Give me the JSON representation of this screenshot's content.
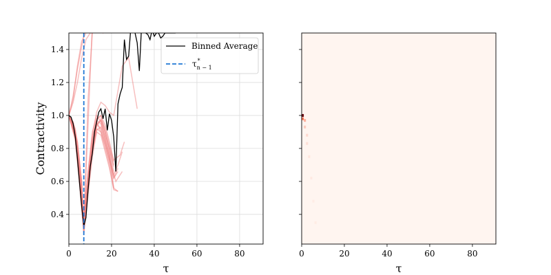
{
  "chart_data": [
    {
      "type": "line",
      "xlabel": "τ",
      "ylabel": "Contractivity",
      "xlim": [
        0,
        91
      ],
      "ylim": [
        0.22,
        1.5
      ],
      "xticks": [
        0,
        20,
        40,
        60,
        80
      ],
      "yticks": [
        0.4,
        0.6,
        0.8,
        1.0,
        1.2,
        1.4
      ],
      "grid": true,
      "legend_placement": "upper right",
      "legend": [
        {
          "label": "Binned Average",
          "style": "solid",
          "color": "#000000"
        },
        {
          "label": "τ",
          "sup": "*",
          "sub": "n − 1",
          "style": "dashed",
          "color": "#1f77d4"
        }
      ],
      "colors": {
        "individual_series": "#f08080",
        "average": "#000000",
        "threshold": "#1f77d4"
      },
      "threshold_x": 7,
      "series": [
        {
          "name": "Binned Average",
          "x": [
            0,
            1,
            2,
            3,
            4,
            5,
            6,
            7,
            8,
            9,
            10,
            11,
            12,
            13,
            14,
            15,
            16,
            17,
            18,
            19,
            20,
            21,
            22,
            23,
            24,
            25,
            26,
            27,
            28,
            29,
            30,
            31,
            32,
            33,
            34,
            35,
            36,
            37,
            38,
            39,
            40,
            41,
            42,
            43,
            44,
            45,
            46,
            47,
            48,
            49,
            50
          ],
          "values": [
            1.0,
            0.99,
            0.95,
            0.87,
            0.74,
            0.59,
            0.45,
            0.33,
            0.38,
            0.55,
            0.69,
            0.77,
            0.9,
            0.96,
            1.02,
            1.04,
            0.98,
            1.04,
            0.91,
            1.01,
            0.97,
            0.87,
            0.66,
            1.07,
            1.13,
            1.17,
            1.46,
            1.34,
            1.36,
            1.53,
            1.53,
            1.5,
            1.44,
            1.27,
            1.53,
            1.53,
            1.5,
            1.49,
            1.46,
            1.52,
            1.48,
            1.5,
            1.5,
            1.47,
            1.48,
            1.5,
            1.5,
            1.5,
            1.5,
            1.5,
            1.5
          ]
        }
      ],
      "individual_series": [
        {
          "x": [
            0,
            3,
            5,
            7,
            9,
            11,
            13,
            15,
            17,
            19,
            21
          ],
          "values": [
            1.0,
            0.86,
            0.6,
            0.3,
            0.55,
            0.78,
            0.92,
            0.9,
            0.8,
            0.7,
            0.56
          ]
        },
        {
          "x": [
            0,
            3,
            5,
            7,
            9,
            11,
            13,
            15,
            17,
            19,
            21,
            23
          ],
          "values": [
            1.0,
            0.88,
            0.62,
            0.32,
            0.6,
            0.82,
            0.97,
            0.95,
            0.86,
            0.76,
            0.62,
            0.68
          ]
        },
        {
          "x": [
            0,
            3,
            5,
            7,
            9,
            11,
            13,
            15,
            17,
            19,
            21,
            24,
            26
          ],
          "values": [
            1.0,
            0.9,
            0.66,
            0.34,
            0.58,
            0.8,
            0.93,
            0.98,
            0.92,
            0.82,
            0.73,
            0.76,
            0.84
          ]
        },
        {
          "x": [
            0,
            3,
            5,
            7,
            9,
            11,
            13,
            15,
            17,
            19,
            21,
            23
          ],
          "values": [
            1.0,
            0.85,
            0.58,
            0.28,
            0.52,
            0.75,
            0.9,
            0.88,
            0.78,
            0.68,
            0.55,
            0.54
          ]
        },
        {
          "x": [
            0,
            3,
            5,
            7,
            9,
            11,
            13,
            15,
            17,
            19,
            21
          ],
          "values": [
            1.0,
            0.87,
            0.64,
            0.36,
            0.62,
            0.84,
            0.97,
            1.0,
            0.94,
            0.84,
            0.72
          ]
        },
        {
          "x": [
            0,
            3,
            5,
            7,
            9,
            11,
            13,
            15,
            17,
            19,
            21,
            23,
            25
          ],
          "values": [
            1.0,
            0.88,
            0.6,
            0.31,
            0.57,
            0.79,
            0.95,
            0.92,
            0.83,
            0.73,
            0.64,
            0.7,
            0.78
          ]
        },
        {
          "x": [
            0,
            3,
            5,
            7,
            9,
            11,
            13,
            15,
            17,
            19,
            21
          ],
          "values": [
            1.0,
            0.89,
            0.63,
            0.33,
            0.6,
            0.81,
            0.94,
            0.97,
            0.88,
            0.8,
            0.69
          ]
        },
        {
          "x": [
            0,
            3,
            5,
            7,
            9,
            11,
            13,
            15,
            17,
            19,
            21,
            23,
            25,
            28,
            32
          ],
          "values": [
            1.0,
            0.92,
            0.7,
            0.4,
            0.66,
            0.88,
            1.02,
            1.08,
            1.06,
            1.02,
            1.0,
            1.15,
            1.3,
            1.35,
            1.04
          ]
        },
        {
          "x": [
            0,
            3,
            5,
            7,
            9,
            11,
            13,
            15,
            17,
            19,
            22,
            25
          ],
          "values": [
            1.0,
            0.86,
            0.61,
            0.3,
            0.56,
            0.78,
            0.91,
            0.93,
            0.84,
            0.74,
            0.6,
            0.66
          ]
        },
        {
          "x": [
            0,
            3,
            5,
            7,
            9,
            11,
            13,
            15,
            17,
            19,
            21,
            23
          ],
          "values": [
            1.0,
            0.88,
            0.62,
            0.33,
            0.59,
            0.8,
            0.96,
            0.9,
            0.82,
            0.72,
            0.62,
            0.66
          ]
        },
        {
          "x": [
            0,
            3,
            5,
            7,
            9,
            11,
            13,
            15,
            17,
            19,
            21
          ],
          "values": [
            1.0,
            0.9,
            0.65,
            0.35,
            0.6,
            0.82,
            0.95,
            0.97,
            0.9,
            0.78,
            0.66
          ]
        },
        {
          "x": [
            0,
            2,
            4,
            6,
            8,
            10,
            12,
            14,
            16,
            18,
            20,
            22,
            24,
            26
          ],
          "values": [
            1.0,
            1.1,
            1.3,
            1.45,
            1.5,
            1.58,
            1.56,
            1.58,
            1.5,
            1.52,
            1.6,
            1.56,
            1.58,
            1.6
          ]
        },
        {
          "x": [
            0,
            2,
            4,
            6,
            8,
            10,
            12,
            14,
            16,
            18,
            20
          ],
          "values": [
            1.0,
            1.12,
            1.28,
            1.42,
            1.55,
            1.6,
            1.58,
            1.57,
            1.6,
            1.58,
            1.6
          ]
        },
        {
          "x": [
            0,
            2,
            4,
            6,
            8,
            10,
            12
          ],
          "values": [
            1.0,
            1.08,
            1.2,
            1.35,
            1.46,
            1.5,
            1.58
          ]
        },
        {
          "x": [
            0,
            2,
            4,
            6,
            7,
            9,
            11
          ],
          "values": [
            1.0,
            0.96,
            0.84,
            0.6,
            0.34,
            0.95,
            1.55
          ]
        },
        {
          "x": [
            0,
            2,
            4,
            6,
            7,
            9,
            11,
            13
          ],
          "values": [
            1.0,
            0.94,
            0.8,
            0.55,
            0.3,
            1.1,
            1.5,
            1.6
          ]
        },
        {
          "x": [
            0,
            2,
            4,
            6,
            7,
            9,
            11,
            13,
            15,
            17,
            19,
            21
          ],
          "values": [
            1.0,
            0.95,
            0.82,
            0.58,
            0.32,
            0.62,
            0.86,
            0.98,
            1.0,
            0.9,
            0.8,
            0.7
          ]
        },
        {
          "x": [
            0,
            2,
            4,
            6,
            7,
            9,
            11,
            13,
            15,
            17,
            19,
            21,
            23
          ],
          "values": [
            1.0,
            0.96,
            0.84,
            0.6,
            0.33,
            0.66,
            0.9,
            1.0,
            0.96,
            0.86,
            0.76,
            0.56,
            0.54
          ]
        }
      ]
    },
    {
      "type": "heatmap",
      "xlabel": "τ",
      "xlim": [
        0,
        91
      ],
      "ylim": [
        0.22,
        1.5
      ],
      "xticks": [
        0,
        20,
        40,
        60,
        80
      ],
      "grid": false,
      "colormap": "Reds",
      "background_color": "#fff5f0",
      "hot_cells": [
        {
          "x": 0.5,
          "y": 1.0,
          "intensity": 1.0
        },
        {
          "x": 0.5,
          "y": 0.98,
          "intensity": 0.55
        },
        {
          "x": 1.5,
          "y": 0.97,
          "intensity": 0.3
        },
        {
          "x": 1.5,
          "y": 0.93,
          "intensity": 0.18
        },
        {
          "x": 2.5,
          "y": 0.88,
          "intensity": 0.12
        },
        {
          "x": 2.5,
          "y": 0.83,
          "intensity": 0.09
        },
        {
          "x": 3.5,
          "y": 0.75,
          "intensity": 0.06
        },
        {
          "x": 4.5,
          "y": 0.62,
          "intensity": 0.05
        },
        {
          "x": 5.5,
          "y": 0.48,
          "intensity": 0.04
        },
        {
          "x": 6.5,
          "y": 0.35,
          "intensity": 0.04
        }
      ]
    }
  ]
}
